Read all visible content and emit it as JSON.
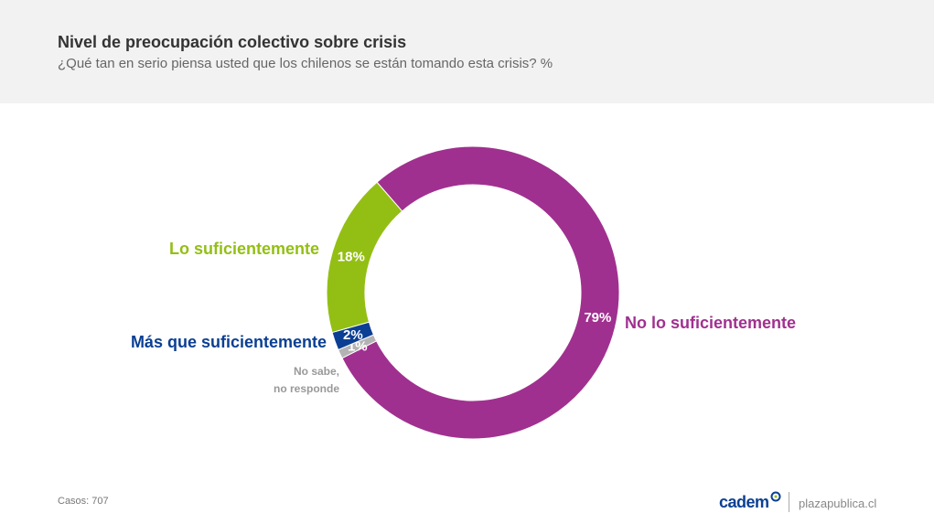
{
  "chart_data": {
    "type": "donut",
    "title": "Nivel de preocupación colectivo sobre crisis",
    "subtitle": "¿Qué tan en serio piensa usted que los chilenos se están tomando esta crisis? %",
    "categories": [
      "No lo suficientemente",
      "No sabe,\nno responde",
      "Más que suficientemente",
      "Lo suficientemente"
    ],
    "values": [
      79,
      1,
      2,
      18
    ],
    "value_labels": [
      "79%",
      "1%",
      "2%",
      "18%"
    ],
    "colors": [
      "#a0308f",
      "#b3b3b3",
      "#0b3f93",
      "#93bf14"
    ]
  },
  "footer": {
    "note": "Casos: 707",
    "brand": "cadem",
    "site": "plazapublica.cl"
  }
}
